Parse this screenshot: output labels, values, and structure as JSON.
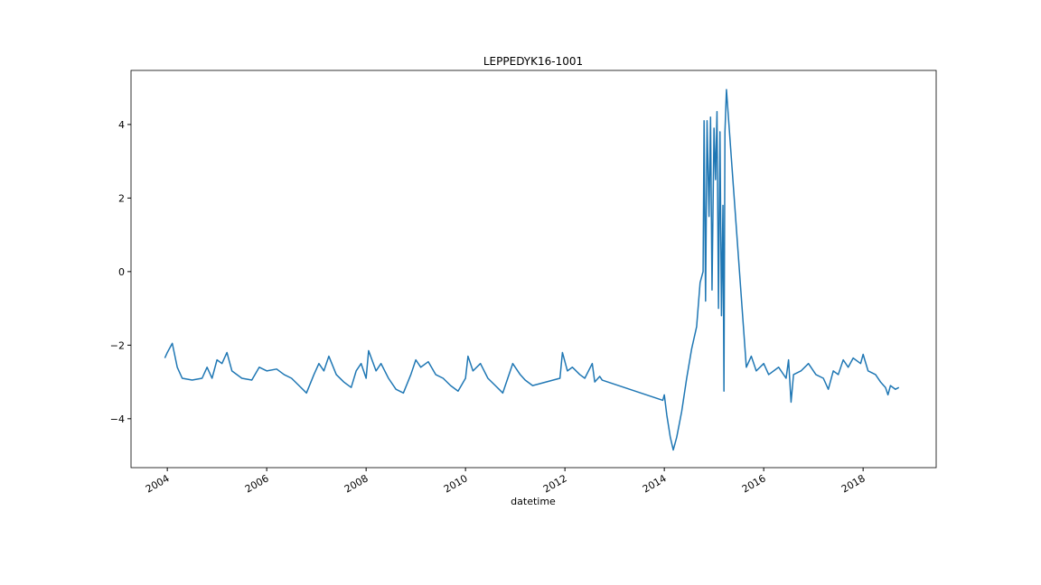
{
  "chart_data": {
    "type": "line",
    "title": "LEPPEDYK16-1001",
    "x_label": "datetime",
    "color": "#1f77b4",
    "x": [
      2003.95,
      2004.0,
      2004.1,
      2004.2,
      2004.3,
      2004.5,
      2004.7,
      2004.8,
      2004.9,
      2005.0,
      2005.1,
      2005.2,
      2005.3,
      2005.5,
      2005.7,
      2005.85,
      2006.0,
      2006.2,
      2006.35,
      2006.5,
      2006.65,
      2006.8,
      2006.95,
      2007.05,
      2007.15,
      2007.25,
      2007.4,
      2007.55,
      2007.7,
      2007.8,
      2007.9,
      2008.0,
      2008.05,
      2008.2,
      2008.3,
      2008.45,
      2008.6,
      2008.75,
      2008.9,
      2009.0,
      2009.1,
      2009.25,
      2009.4,
      2009.55,
      2009.7,
      2009.85,
      2010.0,
      2010.05,
      2010.15,
      2010.3,
      2010.45,
      2010.6,
      2010.75,
      2010.85,
      2010.95,
      2011.1,
      2011.2,
      2011.35,
      2011.9,
      2011.95,
      2012.05,
      2012.15,
      2012.3,
      2012.4,
      2012.55,
      2012.6,
      2012.7,
      2012.75,
      2013.97,
      2014.0,
      2014.05,
      2014.12,
      2014.18,
      2014.25,
      2014.35,
      2014.45,
      2014.55,
      2014.65,
      2014.72,
      2014.78,
      2014.8,
      2014.83,
      2014.86,
      2014.9,
      2014.93,
      2014.96,
      2015.0,
      2015.03,
      2015.06,
      2015.09,
      2015.12,
      2015.15,
      2015.18,
      2015.2,
      2015.22,
      2015.25,
      2015.65,
      2015.75,
      2015.85,
      2016.0,
      2016.1,
      2016.3,
      2016.45,
      2016.5,
      2016.55,
      2016.6,
      2016.75,
      2016.9,
      2017.05,
      2017.2,
      2017.3,
      2017.4,
      2017.5,
      2017.6,
      2017.7,
      2017.8,
      2017.95,
      2018.0,
      2018.1,
      2018.25,
      2018.35,
      2018.45,
      2018.5,
      2018.55,
      2018.65,
      2018.72
    ],
    "values": [
      -2.35,
      -2.2,
      -1.95,
      -2.6,
      -2.9,
      -2.95,
      -2.9,
      -2.6,
      -2.9,
      -2.4,
      -2.5,
      -2.2,
      -2.7,
      -2.9,
      -2.95,
      -2.6,
      -2.7,
      -2.65,
      -2.8,
      -2.9,
      -3.1,
      -3.3,
      -2.8,
      -2.5,
      -2.7,
      -2.3,
      -2.8,
      -3.0,
      -3.15,
      -2.7,
      -2.5,
      -2.9,
      -2.15,
      -2.7,
      -2.5,
      -2.9,
      -3.2,
      -3.3,
      -2.8,
      -2.4,
      -2.6,
      -2.45,
      -2.8,
      -2.9,
      -3.1,
      -3.25,
      -2.9,
      -2.3,
      -2.7,
      -2.5,
      -2.9,
      -3.1,
      -3.3,
      -2.9,
      -2.5,
      -2.8,
      -2.95,
      -3.1,
      -2.9,
      -2.2,
      -2.7,
      -2.6,
      -2.8,
      -2.9,
      -2.5,
      -3.0,
      -2.85,
      -2.95,
      -3.5,
      -3.35,
      -3.9,
      -4.5,
      -4.85,
      -4.5,
      -3.8,
      -2.9,
      -2.1,
      -1.5,
      -0.3,
      0.0,
      4.1,
      -0.8,
      4.1,
      1.5,
      4.2,
      -0.5,
      3.9,
      2.5,
      4.35,
      -1.0,
      3.8,
      -1.2,
      1.8,
      -3.25,
      3.8,
      4.95,
      -2.6,
      -2.3,
      -2.7,
      -2.5,
      -2.8,
      -2.6,
      -2.9,
      -2.4,
      -3.55,
      -2.8,
      -2.7,
      -2.5,
      -2.8,
      -2.9,
      -3.2,
      -2.7,
      -2.8,
      -2.4,
      -2.6,
      -2.35,
      -2.5,
      -2.25,
      -2.7,
      -2.8,
      -3.0,
      -3.15,
      -3.35,
      -3.1,
      -3.2,
      -3.15
    ],
    "xlim": [
      2003.27,
      2019.47
    ],
    "xticks": [
      2004,
      2006,
      2008,
      2010,
      2012,
      2014,
      2016,
      2018
    ],
    "ylim": [
      -5.33,
      5.47
    ],
    "yticks": [
      {
        "value": -4,
        "label": "−4"
      },
      {
        "value": -2,
        "label": "−2"
      },
      0,
      2,
      4
    ]
  }
}
